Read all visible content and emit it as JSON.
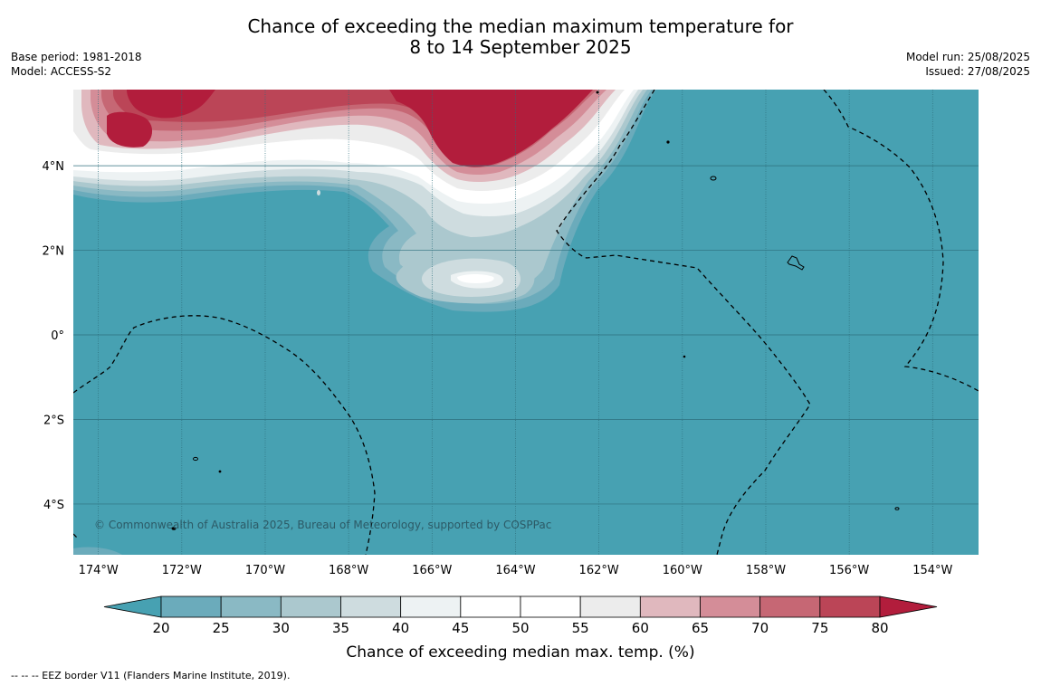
{
  "title": {
    "line1": "Chance of exceeding the median maximum temperature for",
    "line2": "8 to 14 September 2025"
  },
  "meta_left": {
    "base_period": "Base period: 1981-2018",
    "model": "Model: ACCESS-S2"
  },
  "meta_right": {
    "model_run": "Model run: 25/08/2025",
    "issued": "Issued: 27/08/2025"
  },
  "map": {
    "lon_range": [
      -174.6,
      -152.9
    ],
    "lat_range": [
      -5.2,
      5.8
    ],
    "lon_labels": [
      "174°W",
      "172°W",
      "170°W",
      "168°W",
      "166°W",
      "164°W",
      "162°W",
      "160°W",
      "158°W",
      "156°W",
      "154°W"
    ],
    "lon_values": [
      -174,
      -172,
      -170,
      -168,
      -166,
      -164,
      -162,
      -160,
      -158,
      -156,
      -154
    ],
    "lat_labels": [
      "4°N",
      "2°N",
      "0°",
      "2°S",
      "4°S"
    ],
    "lat_values": [
      4,
      2,
      0,
      -2,
      -4
    ],
    "background_category": "<20",
    "copyright": "© Commonwealth of Australia 2025, Bureau of Meteorology, supported by COSPPac"
  },
  "colorbar": {
    "ticks": [
      "20",
      "25",
      "30",
      "35",
      "40",
      "45",
      "50",
      "55",
      "60",
      "65",
      "70",
      "75",
      "80"
    ],
    "colors": [
      "#47a1b2",
      "#6babbb",
      "#8ab9c4",
      "#abc8ce",
      "#cedcdf",
      "#edf2f3",
      "#ffffff",
      "#ffffff",
      "#ececec",
      "#e0b8be",
      "#d48d98",
      "#c66774",
      "#bb4557",
      "#b21d3c"
    ],
    "title": "Chance of exceeding median max. temp. (%)"
  },
  "footnote": "--  --  -- EEZ border V11 (Flanders Marine Institute, 2019)."
}
